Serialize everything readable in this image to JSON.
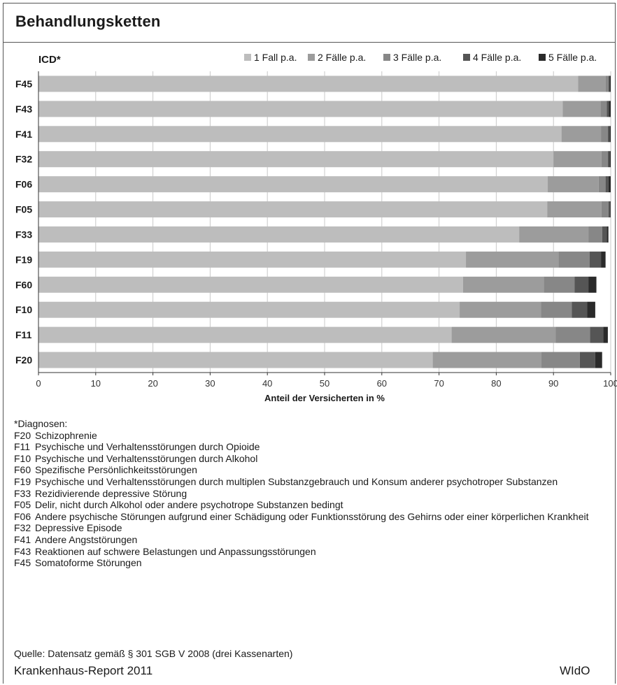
{
  "title": "Behandlungsketten",
  "chart_data": {
    "type": "bar",
    "orientation": "horizontal",
    "stacked": true,
    "categories_label": "ICD*",
    "categories": [
      "F45",
      "F43",
      "F41",
      "F32",
      "F06",
      "F05",
      "F33",
      "F19",
      "F60",
      "F10",
      "F11",
      "F20"
    ],
    "series": [
      {
        "name": "1 Fall p.a.",
        "color": "#bdbdbd",
        "values": [
          94.3,
          91.6,
          91.4,
          90.0,
          89.0,
          88.9,
          84.0,
          74.7,
          74.2,
          73.6,
          72.2,
          68.9
        ]
      },
      {
        "name": "2 Fälle p.a.",
        "color": "#9c9c9c",
        "values": [
          4.8,
          6.6,
          6.9,
          8.4,
          8.9,
          9.5,
          12.1,
          16.2,
          14.1,
          14.2,
          18.2,
          19.0
        ]
      },
      {
        "name": "3  Fälle p.a.",
        "color": "#878787",
        "values": [
          0.5,
          1.1,
          1.2,
          1.1,
          1.2,
          1.2,
          2.4,
          5.4,
          5.4,
          5.4,
          6.0,
          6.7
        ]
      },
      {
        "name": "4 Fälle p.a.",
        "color": "#555555",
        "values": [
          0.2,
          0.4,
          0.3,
          0.3,
          0.5,
          0.3,
          0.8,
          2.0,
          2.4,
          2.7,
          2.3,
          2.7
        ]
      },
      {
        "name": "5 Fälle p.a.",
        "color": "#2a2a2a",
        "values": [
          0.2,
          0.3,
          0.2,
          0.2,
          0.4,
          0.1,
          0.3,
          0.8,
          1.4,
          1.4,
          0.8,
          1.2
        ]
      }
    ],
    "xlabel": "Anteil der Versicherten in %",
    "xlim": [
      0,
      100
    ],
    "xticks": [
      "0",
      "10",
      "20",
      "30",
      "40",
      "50",
      "60",
      "70",
      "80",
      "90",
      "100"
    ],
    "grid": "vertical",
    "legend": "top-right"
  },
  "notes": {
    "heading": "*Diagnosen:",
    "items": [
      {
        "code": "F20",
        "text": "Schizophrenie"
      },
      {
        "code": "F11",
        "text": "Psychische und Verhaltensstörungen durch Opioide"
      },
      {
        "code": "F10",
        "text": "Psychische und Verhaltensstörungen durch Alkohol"
      },
      {
        "code": "F60",
        "text": "Spezifische Persönlichkeitsstörungen"
      },
      {
        "code": "F19",
        "text": "Psychische und Verhaltensstörungen durch multiplen Substanzgebrauch und Konsum anderer psychotroper Substanzen"
      },
      {
        "code": "F33",
        "text": "Rezidivierende depressive Störung"
      },
      {
        "code": "F05",
        "text": "Delir, nicht durch Alkohol oder andere psychotrope Substanzen bedingt"
      },
      {
        "code": "F06",
        "text": "Andere psychische Störungen aufgrund einer Schädigung oder Funktionsstörung des Gehirns oder einer körperlichen Krankheit"
      },
      {
        "code": "F32",
        "text": "Depressive Episode"
      },
      {
        "code": "F41",
        "text": "Andere Angststörungen"
      },
      {
        "code": "F43",
        "text": "Reaktionen auf schwere Belastungen und Anpassungsstörungen"
      },
      {
        "code": "F45",
        "text": "Somatoforme Störungen"
      }
    ]
  },
  "source": "Quelle: Datensatz gemäß § 301 SGB V 2008 (drei Kassenarten)",
  "footer": {
    "report": "Krankenhaus-Report 2011",
    "publisher": "WIdO"
  }
}
